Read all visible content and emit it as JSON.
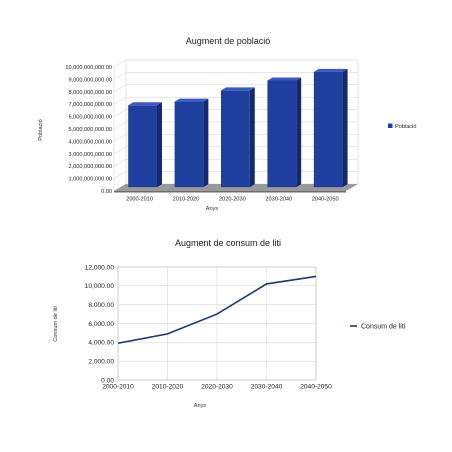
{
  "chart_data": [
    {
      "type": "bar",
      "title": "Augment de població",
      "xlabel": "Anys",
      "ylabel": "Població",
      "categories": [
        "2000-2010",
        "2010-2020",
        "2020-2030",
        "2030-2040",
        "2040-2050"
      ],
      "series": [
        {
          "name": "Població",
          "values": [
            6600000000,
            6900000000,
            7800000000,
            8600000000,
            9300000000
          ]
        }
      ],
      "yticks": [
        "0.00",
        "1,000,000,000.00",
        "2,000,000,000.00",
        "3,000,000,000.00",
        "4,000,000,000.00",
        "5,000,000,000.00",
        "6,000,000,000.00",
        "7,000,000,000.00",
        "8,000,000,000.00",
        "9,000,000,000.00",
        "10,000,000,000.00"
      ],
      "ylim": [
        0,
        10000000000
      ],
      "grid": true,
      "legend_position": "right",
      "colors": {
        "bar": "#1f3f9f",
        "bar_top": "#3a5cc0",
        "bar_side": "#142a6e",
        "floor": "#9a9a9a"
      }
    },
    {
      "type": "line",
      "title": "Augment de consum de liti",
      "xlabel": "Anys",
      "ylabel": "Consum de liti",
      "categories": [
        "2000-2010",
        "2010-2020",
        "2020-2030",
        "2030-2040",
        "2040-2050"
      ],
      "series": [
        {
          "name": "Consum de liti",
          "values": [
            3900,
            4900,
            7000,
            10200,
            11000
          ]
        }
      ],
      "yticks": [
        "0.00",
        "2,000.00",
        "4,000.00",
        "6,000.00",
        "8,000.00",
        "10,000.00",
        "12,000.00"
      ],
      "ylim": [
        0,
        12000
      ],
      "grid": true,
      "legend_position": "right",
      "colors": {
        "line": "#1a3a6e"
      }
    }
  ]
}
